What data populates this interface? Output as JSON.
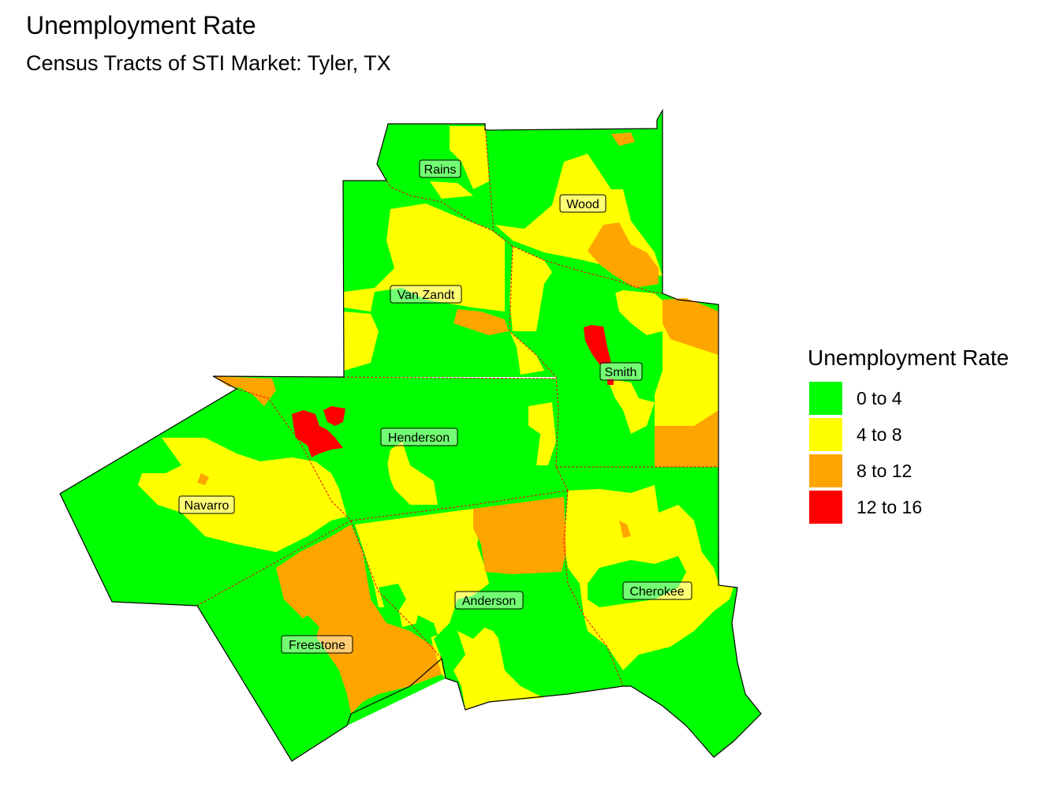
{
  "title": "Unemployment Rate",
  "subtitle": "Census Tracts of STI Market: Tyler, TX",
  "legend": {
    "title": "Unemployment Rate",
    "items": [
      {
        "label": "0 to 4",
        "color": "#00ff00"
      },
      {
        "label": "4 to 8",
        "color": "#ffff00"
      },
      {
        "label": "8 to 12",
        "color": "#ffa500"
      },
      {
        "label": "12 to 16",
        "color": "#ff0000"
      }
    ]
  },
  "counties": {
    "rains": "Rains",
    "wood": "Wood",
    "van_zandt": "Van Zandt",
    "smith": "Smith",
    "henderson": "Henderson",
    "navarro": "Navarro",
    "anderson": "Anderson",
    "cherokee": "Cherokee",
    "freestone": "Freestone"
  }
}
